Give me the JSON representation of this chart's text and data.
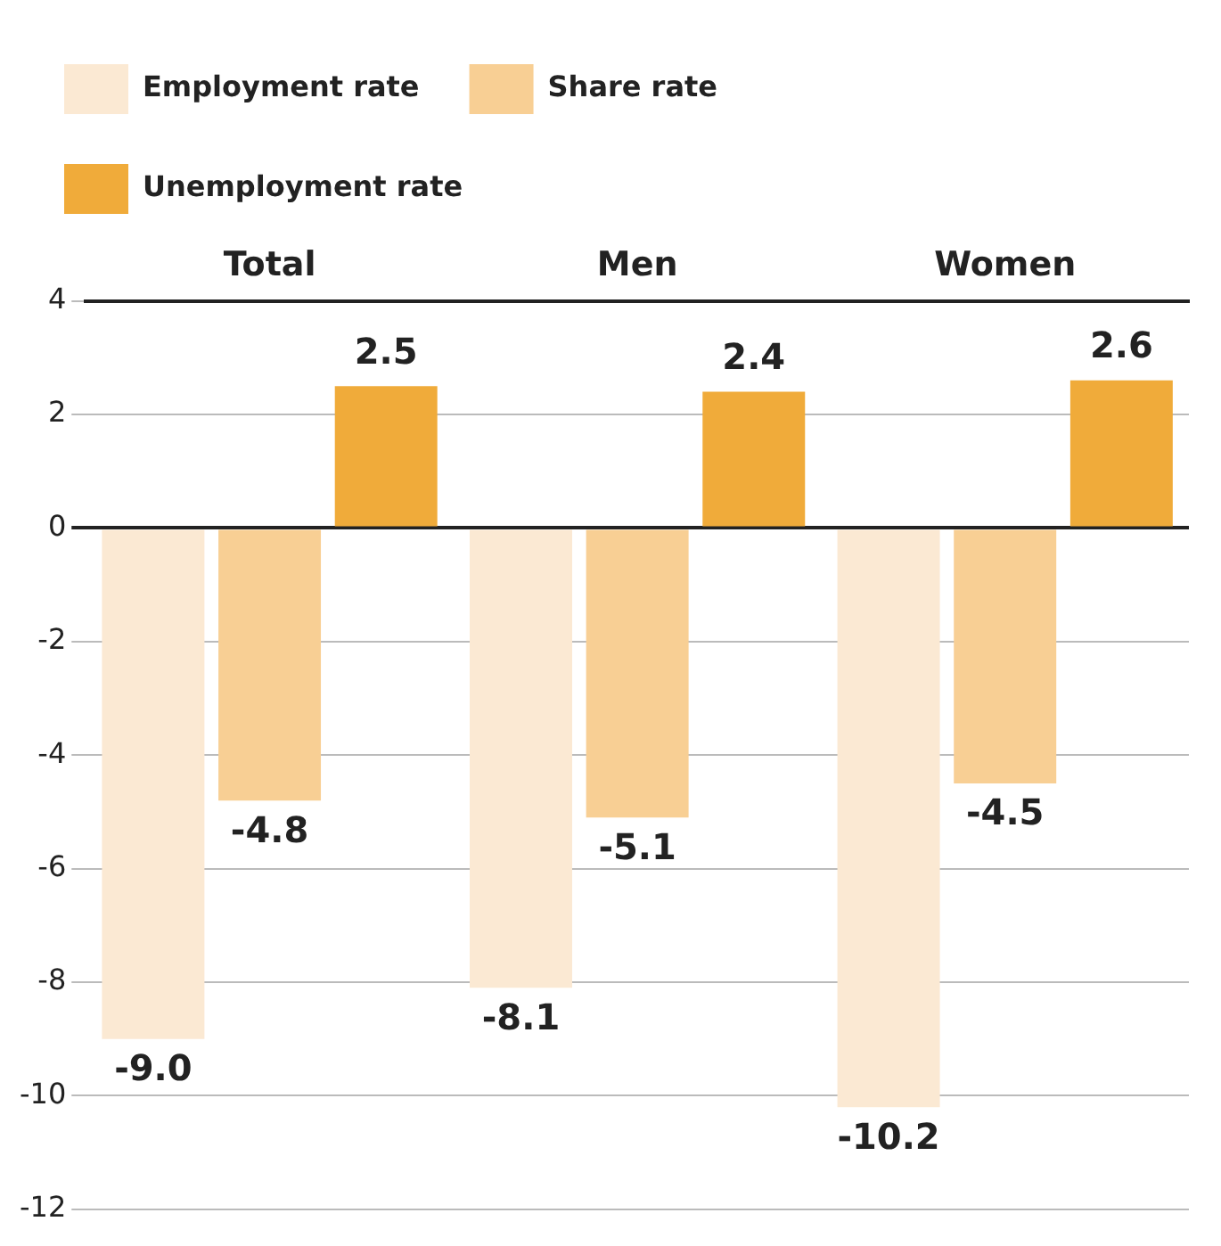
{
  "chart_data": {
    "type": "bar",
    "categories": [
      "Total",
      "Men",
      "Women"
    ],
    "series": [
      {
        "name": "Employment rate",
        "color": "#fbe9d3",
        "values": [
          -9.0,
          -8.1,
          -10.2
        ],
        "value_labels": [
          "-9.0",
          "-8.1",
          "-10.2"
        ]
      },
      {
        "name": "Share rate",
        "color": "#f8cf94",
        "values": [
          -4.8,
          -5.1,
          -4.5
        ],
        "value_labels": [
          "-4.8",
          "-5.1",
          "-4.5"
        ]
      },
      {
        "name": "Unemployment rate",
        "color": "#f0ab3a",
        "values": [
          2.5,
          2.4,
          2.6
        ],
        "value_labels": [
          "2.5",
          "2.4",
          "2.6"
        ]
      }
    ],
    "ylim": [
      -12,
      4
    ],
    "yticks": [
      -12,
      -10,
      -8,
      -6,
      -4,
      -2,
      0,
      2,
      4
    ],
    "grid": "y",
    "legend": "top"
  }
}
